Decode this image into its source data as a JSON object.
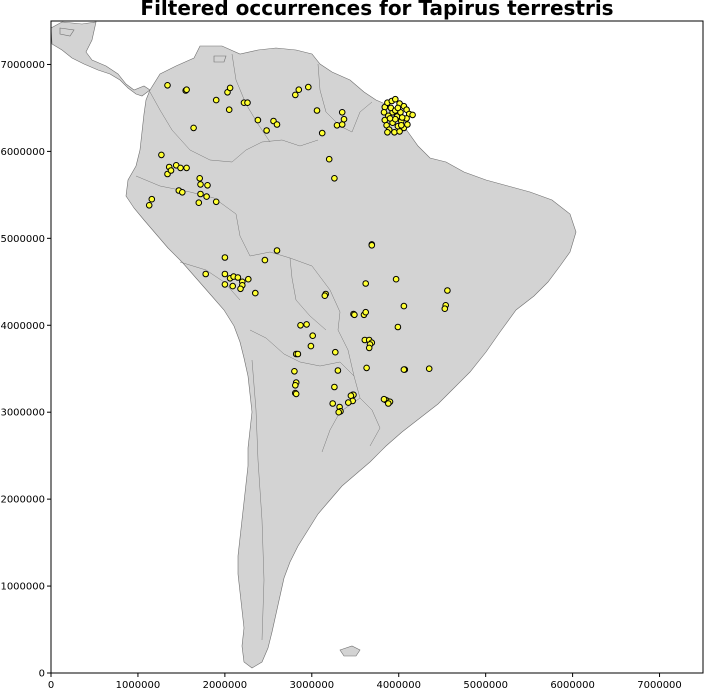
{
  "title": "Filtered occurrences for Tapirus terrestris",
  "colors": {
    "land": "#d3d3d3",
    "border": "#6f6f6f",
    "point_fill": "#ffff33",
    "point_edge": "#000000",
    "background": "#ffffff"
  },
  "chart_data": {
    "type": "scatter",
    "title": "Filtered occurrences for Tapirus terrestris",
    "xlabel": "",
    "ylabel": "",
    "xlim": [
      0,
      7500000
    ],
    "ylim": [
      0,
      7500000
    ],
    "grid": false,
    "x_ticks": [
      0,
      1000000,
      2000000,
      3000000,
      4000000,
      5000000,
      6000000,
      7000000
    ],
    "y_ticks": [
      0,
      1000000,
      2000000,
      3000000,
      4000000,
      5000000,
      6000000,
      7000000
    ],
    "x_tick_labels": [
      "0",
      "1000000",
      "2000000",
      "3000000",
      "4000000",
      "5000000",
      "6000000",
      "7000000"
    ],
    "y_tick_labels": [
      "0",
      "1000000",
      "2000000",
      "3000000",
      "4000000",
      "5000000",
      "6000000",
      "7000000"
    ],
    "series": [
      {
        "points": [
          [
            1340000,
            6760000
          ],
          [
            1550000,
            6700000
          ],
          [
            1560000,
            6710000
          ],
          [
            1900000,
            6590000
          ],
          [
            2030000,
            6680000
          ],
          [
            2060000,
            6730000
          ],
          [
            2050000,
            6480000
          ],
          [
            2220000,
            6560000
          ],
          [
            2260000,
            6560000
          ],
          [
            2380000,
            6360000
          ],
          [
            2560000,
            6350000
          ],
          [
            2600000,
            6310000
          ],
          [
            2480000,
            6240000
          ],
          [
            1640000,
            6270000
          ],
          [
            2810000,
            6650000
          ],
          [
            2850000,
            6710000
          ],
          [
            2960000,
            6740000
          ],
          [
            3060000,
            6470000
          ],
          [
            3120000,
            6210000
          ],
          [
            3290000,
            6300000
          ],
          [
            3350000,
            6310000
          ],
          [
            3350000,
            6450000
          ],
          [
            3370000,
            6370000
          ],
          [
            3200000,
            5910000
          ],
          [
            3260000,
            5690000
          ],
          [
            1270000,
            5960000
          ],
          [
            1360000,
            5820000
          ],
          [
            1340000,
            5740000
          ],
          [
            1380000,
            5780000
          ],
          [
            1440000,
            5840000
          ],
          [
            1490000,
            5810000
          ],
          [
            1560000,
            5810000
          ],
          [
            1710000,
            5690000
          ],
          [
            1720000,
            5620000
          ],
          [
            1800000,
            5610000
          ],
          [
            1720000,
            5510000
          ],
          [
            1790000,
            5480000
          ],
          [
            1700000,
            5410000
          ],
          [
            1900000,
            5420000
          ],
          [
            1470000,
            5550000
          ],
          [
            1510000,
            5530000
          ],
          [
            1160000,
            5450000
          ],
          [
            1130000,
            5380000
          ],
          [
            3840000,
            6510000
          ],
          [
            3870000,
            6560000
          ],
          [
            3920000,
            6580000
          ],
          [
            3960000,
            6600000
          ],
          [
            4010000,
            6550000
          ],
          [
            4060000,
            6520000
          ],
          [
            4090000,
            6480000
          ],
          [
            4120000,
            6430000
          ],
          [
            4160000,
            6420000
          ],
          [
            4090000,
            6380000
          ],
          [
            4030000,
            6350000
          ],
          [
            3980000,
            6400000
          ],
          [
            3930000,
            6450000
          ],
          [
            3880000,
            6410000
          ],
          [
            3840000,
            6360000
          ],
          [
            3860000,
            6300000
          ],
          [
            3890000,
            6250000
          ],
          [
            3950000,
            6220000
          ],
          [
            4010000,
            6230000
          ],
          [
            4060000,
            6270000
          ],
          [
            4100000,
            6310000
          ],
          [
            3930000,
            6330000
          ],
          [
            3990000,
            6290000
          ],
          [
            3910000,
            6500000
          ],
          [
            3960000,
            6470000
          ],
          [
            4020000,
            6450000
          ],
          [
            3830000,
            6450000
          ],
          [
            3870000,
            6220000
          ],
          [
            4030000,
            6300000
          ],
          [
            3960000,
            6370000
          ],
          [
            3990000,
            6500000
          ],
          [
            4040000,
            6390000
          ],
          [
            3900000,
            6380000
          ],
          [
            3690000,
            4930000
          ],
          [
            3690000,
            4920000
          ],
          [
            2600000,
            4860000
          ],
          [
            2460000,
            4750000
          ],
          [
            2000000,
            4780000
          ],
          [
            1780000,
            4590000
          ],
          [
            2000000,
            4590000
          ],
          [
            2060000,
            4540000
          ],
          [
            2100000,
            4560000
          ],
          [
            2150000,
            4550000
          ],
          [
            2270000,
            4530000
          ],
          [
            2200000,
            4500000
          ],
          [
            2000000,
            4470000
          ],
          [
            2090000,
            4450000
          ],
          [
            2200000,
            4460000
          ],
          [
            2180000,
            4420000
          ],
          [
            2350000,
            4370000
          ],
          [
            3160000,
            4360000
          ],
          [
            3150000,
            4340000
          ],
          [
            3620000,
            4480000
          ],
          [
            3970000,
            4530000
          ],
          [
            4560000,
            4400000
          ],
          [
            4060000,
            4220000
          ],
          [
            4540000,
            4230000
          ],
          [
            4530000,
            4190000
          ],
          [
            3480000,
            4130000
          ],
          [
            3490000,
            4120000
          ],
          [
            3600000,
            4120000
          ],
          [
            3620000,
            4150000
          ],
          [
            2870000,
            4000000
          ],
          [
            2940000,
            4010000
          ],
          [
            3990000,
            3980000
          ],
          [
            3010000,
            3880000
          ],
          [
            3610000,
            3830000
          ],
          [
            3660000,
            3830000
          ],
          [
            3690000,
            3800000
          ],
          [
            3670000,
            3780000
          ],
          [
            3660000,
            3740000
          ],
          [
            2990000,
            3760000
          ],
          [
            2820000,
            3670000
          ],
          [
            2840000,
            3670000
          ],
          [
            3270000,
            3690000
          ],
          [
            4070000,
            3490000
          ],
          [
            4060000,
            3490000
          ],
          [
            4350000,
            3500000
          ],
          [
            3630000,
            3510000
          ],
          [
            2800000,
            3470000
          ],
          [
            3300000,
            3480000
          ],
          [
            2820000,
            3340000
          ],
          [
            2810000,
            3310000
          ],
          [
            3260000,
            3290000
          ],
          [
            2810000,
            3220000
          ],
          [
            2820000,
            3210000
          ],
          [
            3470000,
            3200000
          ],
          [
            3480000,
            3200000
          ],
          [
            3450000,
            3190000
          ],
          [
            3470000,
            3130000
          ],
          [
            3420000,
            3110000
          ],
          [
            3240000,
            3100000
          ],
          [
            3320000,
            3060000
          ],
          [
            3330000,
            3010000
          ],
          [
            3310000,
            3000000
          ],
          [
            3850000,
            3140000
          ],
          [
            3870000,
            3130000
          ],
          [
            3900000,
            3120000
          ],
          [
            3880000,
            3100000
          ],
          [
            3830000,
            3150000
          ]
        ]
      }
    ]
  }
}
